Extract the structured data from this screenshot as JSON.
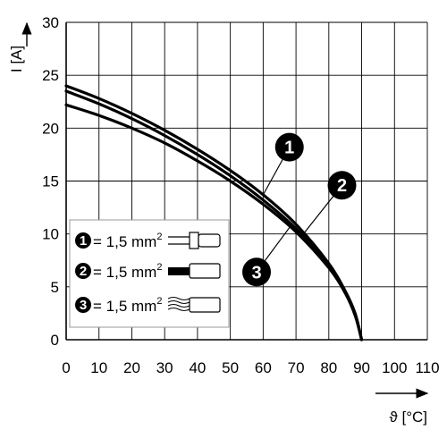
{
  "chart_data": {
    "type": "line",
    "xlabel": "ϑ [°C]",
    "ylabel": "I [A]",
    "xlim": [
      0,
      110
    ],
    "ylim": [
      0,
      30
    ],
    "x_ticks": [
      0,
      10,
      20,
      30,
      40,
      50,
      60,
      70,
      80,
      90,
      100,
      110
    ],
    "y_ticks": [
      0,
      5,
      10,
      15,
      20,
      25,
      30
    ],
    "grid": true,
    "legend_position": "left-middle",
    "series": [
      {
        "name": "1",
        "x": [
          0,
          10,
          20,
          30,
          40,
          50,
          60,
          70,
          80,
          85,
          88,
          90
        ],
        "y": [
          24.0,
          22.8,
          21.4,
          19.8,
          18.0,
          16.0,
          13.7,
          10.9,
          7.2,
          4.6,
          2.5,
          0.0
        ]
      },
      {
        "name": "2",
        "x": [
          0,
          10,
          20,
          30,
          40,
          50,
          60,
          70,
          80,
          85,
          88,
          90
        ],
        "y": [
          23.5,
          22.3,
          20.9,
          19.3,
          17.5,
          15.5,
          13.2,
          10.5,
          7.0,
          4.5,
          2.4,
          0.0
        ]
      },
      {
        "name": "3",
        "x": [
          0,
          10,
          20,
          30,
          40,
          50,
          60,
          70,
          80,
          85,
          88,
          90
        ],
        "y": [
          22.2,
          21.2,
          20.0,
          18.6,
          16.9,
          15.0,
          12.8,
          10.2,
          6.8,
          4.4,
          2.3,
          0.0
        ]
      }
    ],
    "callouts": [
      {
        "label": "1",
        "x": 68,
        "y": 18.2,
        "point_x": 60,
        "point_y": 13.7
      },
      {
        "label": "2",
        "x": 84,
        "y": 14.6,
        "point_x": 72,
        "point_y": 9.9
      },
      {
        "label": "3",
        "x": 58,
        "y": 6.4,
        "point_x": 68,
        "point_y": 10.6
      }
    ],
    "legend": [
      {
        "badge": "1",
        "text": "= 1,5 mm",
        "superscript": "2",
        "icon": "ferrule-with-plastic-collar-icon"
      },
      {
        "badge": "2",
        "text": "= 1,5 mm",
        "superscript": "2",
        "icon": "ferrule-without-collar-icon"
      },
      {
        "badge": "3",
        "text": "= 1,5 mm",
        "superscript": "2",
        "icon": "stranded-wire-icon"
      }
    ]
  }
}
